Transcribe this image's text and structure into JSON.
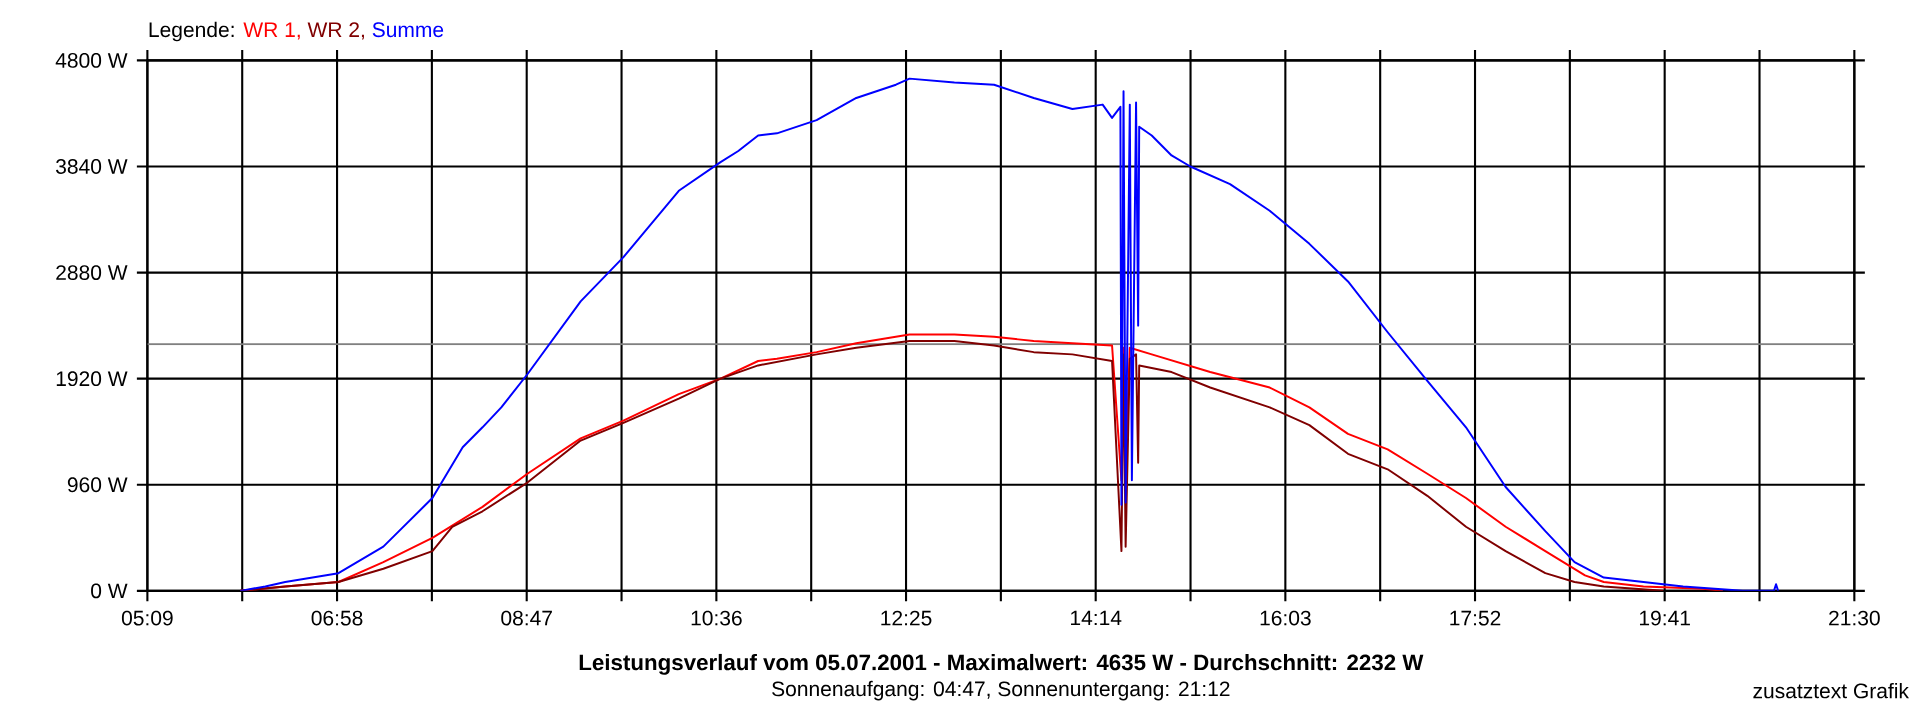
{
  "chart_data": {
    "type": "line",
    "title": "Leistungsverlauf vom 05.07.2001 - Maximalwert: 4635 W - Durchschnitt: 2232 W",
    "subtitle": "Sonnenaufgang: 04:47, Sonnenuntergang: 21:12",
    "legend_title": "Legende:",
    "annotations": [
      "zusatztext Grafik"
    ],
    "xlim": [
      5.15,
      21.5
    ],
    "xticks": [
      {
        "value": 5.15,
        "label": "05:09"
      },
      {
        "value": 6.0583,
        "label": null
      },
      {
        "value": 6.9667,
        "label": "06:58"
      },
      {
        "value": 7.875,
        "label": null
      },
      {
        "value": 8.7833,
        "label": "08:47"
      },
      {
        "value": 9.6917,
        "label": null
      },
      {
        "value": 10.6,
        "label": "10:36"
      },
      {
        "value": 11.5083,
        "label": null
      },
      {
        "value": 12.4167,
        "label": "12:25"
      },
      {
        "value": 13.325,
        "label": null
      },
      {
        "value": 14.2333,
        "label": "14:14"
      },
      {
        "value": 15.1417,
        "label": null
      },
      {
        "value": 16.05,
        "label": "16:03"
      },
      {
        "value": 16.9583,
        "label": null
      },
      {
        "value": 17.8667,
        "label": "17:52"
      },
      {
        "value": 18.775,
        "label": null
      },
      {
        "value": 19.6833,
        "label": "19:41"
      },
      {
        "value": 20.5917,
        "label": null
      },
      {
        "value": 21.5,
        "label": "21:30"
      }
    ],
    "ylim": [
      0,
      4800
    ],
    "yticks": [
      {
        "value": 0,
        "label": "0 W"
      },
      {
        "value": 960,
        "label": "960 W"
      },
      {
        "value": 1920,
        "label": "1920 W"
      },
      {
        "value": 2880,
        "label": "2880 W"
      },
      {
        "value": 3840,
        "label": "3840 W"
      },
      {
        "value": 4800,
        "label": "4800 W"
      }
    ],
    "grid": true,
    "legend": "top left",
    "ref_lines": [
      {
        "axis": "y",
        "value": 2232,
        "color": "#808080"
      }
    ],
    "series": [
      {
        "name": "WR 1,",
        "color": "#ff0000",
        "x": [
          6.04,
          6.47,
          6.98,
          7.41,
          7.88,
          8.36,
          8.79,
          9.3,
          9.71,
          10.24,
          10.64,
          11.0,
          11.18,
          11.56,
          11.94,
          12.45,
          12.88,
          13.26,
          13.64,
          14.01,
          14.39,
          14.48,
          14.5,
          14.52,
          14.56,
          14.77,
          15.33,
          15.9,
          16.28,
          16.65,
          17.03,
          17.41,
          17.78,
          18.16,
          18.54,
          18.92,
          19.1,
          19.48,
          20.05,
          20.24
        ],
        "values": [
          0,
          40,
          80,
          260,
          480,
          760,
          1060,
          1380,
          1540,
          1780,
          1920,
          2080,
          2100,
          2160,
          2240,
          2320,
          2320,
          2300,
          2260,
          2240,
          2220,
          1000,
          2200,
          1100,
          2200,
          2140,
          1980,
          1840,
          1660,
          1420,
          1280,
          1060,
          840,
          580,
          360,
          140,
          80,
          40,
          20,
          0
        ]
      },
      {
        "name": "WR 2,",
        "color": "#800000",
        "x": [
          6.04,
          6.47,
          6.98,
          7.41,
          7.88,
          8.07,
          8.36,
          8.79,
          9.3,
          9.71,
          10.24,
          10.64,
          11.0,
          11.56,
          11.94,
          12.45,
          12.88,
          13.26,
          13.64,
          14.01,
          14.39,
          14.48,
          14.5,
          14.52,
          14.56,
          14.62,
          14.64,
          14.65,
          14.96,
          15.33,
          15.9,
          16.28,
          16.65,
          17.03,
          17.41,
          17.78,
          18.16,
          18.54,
          18.82,
          19.1,
          19.67
        ],
        "values": [
          0,
          40,
          80,
          200,
          360,
          580,
          720,
          980,
          1360,
          1520,
          1740,
          1920,
          2040,
          2140,
          2200,
          2260,
          2260,
          2220,
          2160,
          2140,
          2080,
          360,
          2140,
          400,
          2100,
          2140,
          1160,
          2040,
          1980,
          1840,
          1660,
          1500,
          1240,
          1100,
          860,
          580,
          360,
          160,
          80,
          40,
          0
        ]
      },
      {
        "name": "Summe",
        "color": "#0000ff",
        "x": [
          6.04,
          6.28,
          6.47,
          6.98,
          7.41,
          7.88,
          8.17,
          8.36,
          8.54,
          8.79,
          9.3,
          9.71,
          10.24,
          10.64,
          10.81,
          11.0,
          11.18,
          11.56,
          11.94,
          12.32,
          12.45,
          12.88,
          13.26,
          13.64,
          14.01,
          14.3,
          14.39,
          14.47,
          14.48,
          14.5,
          14.52,
          14.56,
          14.58,
          14.62,
          14.64,
          14.65,
          14.77,
          14.96,
          15.14,
          15.52,
          15.9,
          16.28,
          16.65,
          17.03,
          17.41,
          17.78,
          18.16,
          18.54,
          18.82,
          19.1,
          19.48,
          19.86,
          20.43,
          20.73,
          20.75,
          20.77
        ],
        "values": [
          0,
          40,
          80,
          160,
          400,
          840,
          1300,
          1480,
          1660,
          1960,
          2620,
          3020,
          3620,
          3880,
          3980,
          4120,
          4140,
          4260,
          4460,
          4580,
          4635,
          4600,
          4580,
          4460,
          4360,
          4400,
          4280,
          4380,
          780,
          4520,
          800,
          4400,
          1000,
          4420,
          2400,
          4200,
          4120,
          3940,
          3840,
          3680,
          3440,
          3140,
          2800,
          2340,
          1900,
          1480,
          940,
          540,
          260,
          120,
          80,
          40,
          0,
          0,
          60,
          0
        ]
      }
    ]
  }
}
